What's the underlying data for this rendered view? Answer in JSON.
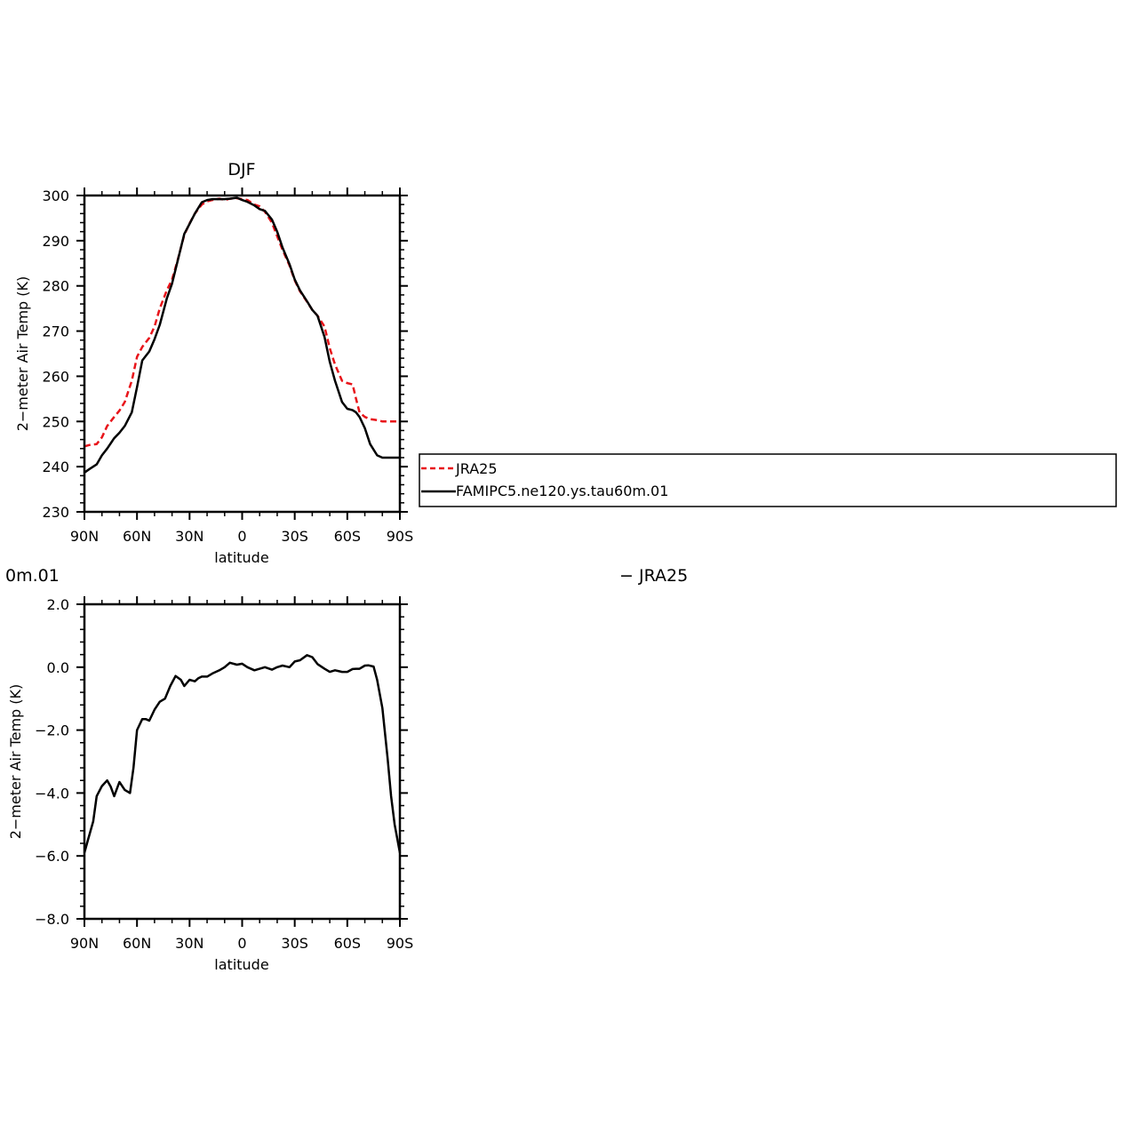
{
  "chart_data": [
    {
      "type": "line",
      "title": "DJF",
      "xlabel": "latitude",
      "ylabel": "2−meter Air Temp (K)",
      "xlim": [
        90,
        -90
      ],
      "ylim": [
        230,
        300
      ],
      "x_ticks": [
        {
          "value": 90,
          "label": "90N"
        },
        {
          "value": 60,
          "label": "60N"
        },
        {
          "value": 30,
          "label": "30N"
        },
        {
          "value": 0,
          "label": "0"
        },
        {
          "value": -30,
          "label": "30S"
        },
        {
          "value": -60,
          "label": "60S"
        },
        {
          "value": -90,
          "label": "90S"
        }
      ],
      "y_ticks": [
        {
          "value": 300,
          "label": "300"
        },
        {
          "value": 290,
          "label": "290"
        },
        {
          "value": 280,
          "label": "280"
        },
        {
          "value": 270,
          "label": "270"
        },
        {
          "value": 260,
          "label": "260"
        },
        {
          "value": 250,
          "label": "250"
        },
        {
          "value": 240,
          "label": "240"
        },
        {
          "value": 230,
          "label": "230"
        }
      ],
      "legend": {
        "placement": "right",
        "entries": [
          "JRA25",
          "FAMIPC5.ne120.ys.tau60m.01"
        ]
      },
      "series": [
        {
          "name": "JRA25",
          "color": "#e8141a",
          "dash": "dashed",
          "x": [
            90,
            87,
            83,
            80,
            77,
            73,
            70,
            67,
            63,
            60,
            57,
            53,
            50,
            47,
            43,
            40,
            37,
            33,
            30,
            27,
            23,
            20,
            17,
            13,
            10,
            7,
            3,
            0,
            -3,
            -7,
            -10,
            -13,
            -17,
            -20,
            -23,
            -27,
            -30,
            -33,
            -37,
            -40,
            -43,
            -47,
            -50,
            -53,
            -57,
            -60,
            -63,
            -65,
            -67,
            -70,
            -73,
            -77,
            -80,
            -83,
            -85,
            -87,
            -90
          ],
          "values": [
            244.5,
            244.8,
            245.0,
            246.5,
            249.0,
            251.0,
            252.4,
            254.3,
            259.0,
            264.3,
            266.5,
            268.5,
            271.0,
            275.0,
            279.0,
            281.4,
            285.4,
            291.3,
            293.8,
            296.0,
            298.0,
            298.7,
            299.0,
            299.3,
            299.0,
            299.3,
            299.4,
            299.2,
            299.0,
            298.0,
            297.6,
            296.4,
            294.0,
            291.0,
            288.0,
            284.5,
            281.2,
            278.8,
            276.5,
            274.7,
            273.4,
            271.0,
            266.2,
            262.6,
            259.0,
            258.5,
            258.2,
            255.0,
            252.0,
            251.0,
            250.5,
            250.3,
            250.0,
            250.0,
            250.0,
            250.0,
            250.0
          ]
        },
        {
          "name": "FAMIPC5.ne120.ys.tau60m.01",
          "color": "#000000",
          "dash": "solid",
          "x": [
            90,
            87,
            83,
            80,
            77,
            73,
            70,
            67,
            63,
            60,
            57,
            53,
            50,
            47,
            43,
            40,
            37,
            33,
            30,
            27,
            23,
            20,
            17,
            13,
            10,
            7,
            3,
            0,
            -3,
            -7,
            -10,
            -13,
            -17,
            -20,
            -23,
            -27,
            -30,
            -33,
            -37,
            -40,
            -43,
            -47,
            -50,
            -53,
            -57,
            -60,
            -63,
            -65,
            -67,
            -70,
            -73,
            -77,
            -80,
            -83,
            -85,
            -87,
            -90
          ],
          "values": [
            238.7,
            239.5,
            240.5,
            242.5,
            244.0,
            246.3,
            247.5,
            249.0,
            252.0,
            257.6,
            263.5,
            265.5,
            268.2,
            271.4,
            277.2,
            280.5,
            285.2,
            291.5,
            293.7,
            296.0,
            298.5,
            299.0,
            299.2,
            299.2,
            299.2,
            299.3,
            299.5,
            299.0,
            298.6,
            297.8,
            297.0,
            296.6,
            294.7,
            292.0,
            288.5,
            284.8,
            281.4,
            279.0,
            276.6,
            274.7,
            273.4,
            268.7,
            263.2,
            259.0,
            254.3,
            252.8,
            252.5,
            252.0,
            251.0,
            248.5,
            245.0,
            242.5,
            242.0,
            242.0,
            242.0,
            242.0,
            242.0
          ]
        }
      ]
    },
    {
      "type": "line",
      "title_left": "0m.01",
      "title_right": "− JRA25",
      "xlabel": "latitude",
      "ylabel": "2−meter Air Temp (K)",
      "xlim": [
        90,
        -90
      ],
      "ylim": [
        -8,
        2
      ],
      "x_ticks": [
        {
          "value": 90,
          "label": "90N"
        },
        {
          "value": 60,
          "label": "60N"
        },
        {
          "value": 30,
          "label": "30N"
        },
        {
          "value": 0,
          "label": "0"
        },
        {
          "value": -30,
          "label": "30S"
        },
        {
          "value": -60,
          "label": "60S"
        },
        {
          "value": -90,
          "label": "90S"
        }
      ],
      "y_ticks": [
        {
          "value": 2,
          "label": "2.0"
        },
        {
          "value": 0,
          "label": "0.0"
        },
        {
          "value": -2,
          "label": "−2.0"
        },
        {
          "value": -4,
          "label": "−4.0"
        },
        {
          "value": -6,
          "label": "−6.0"
        },
        {
          "value": -8,
          "label": "−8.0"
        }
      ],
      "series": [
        {
          "color": "#000000",
          "dash": "solid",
          "x": [
            90,
            88,
            85,
            83,
            80,
            77,
            75,
            73,
            70,
            67,
            64,
            62,
            60,
            57,
            55,
            53,
            50,
            47,
            44,
            41,
            38,
            35,
            33,
            30,
            27,
            25,
            23,
            20,
            17,
            13,
            10,
            7,
            3,
            0,
            -3,
            -7,
            -10,
            -13,
            -17,
            -20,
            -23,
            -27,
            -30,
            -33,
            -37,
            -40,
            -43,
            -47,
            -50,
            -53,
            -57,
            -60,
            -63,
            -65,
            -67,
            -70,
            -72,
            -75,
            -77,
            -80,
            -83,
            -85,
            -87,
            -90
          ],
          "values": [
            -5.9,
            -5.5,
            -4.9,
            -4.1,
            -3.78,
            -3.6,
            -3.8,
            -4.1,
            -3.65,
            -3.9,
            -4.0,
            -3.2,
            -2.0,
            -1.65,
            -1.65,
            -1.7,
            -1.35,
            -1.1,
            -1.0,
            -0.6,
            -0.28,
            -0.4,
            -0.6,
            -0.4,
            -0.45,
            -0.35,
            -0.3,
            -0.3,
            -0.2,
            -0.1,
            0.0,
            0.14,
            0.08,
            0.11,
            0.0,
            -0.1,
            -0.05,
            0.0,
            -0.08,
            0.0,
            0.05,
            0.0,
            0.18,
            0.22,
            0.38,
            0.32,
            0.1,
            -0.05,
            -0.15,
            -0.1,
            -0.15,
            -0.15,
            -0.06,
            -0.05,
            -0.05,
            0.05,
            0.06,
            0.02,
            -0.4,
            -1.3,
            -2.9,
            -4.1,
            -5.0,
            -5.9
          ]
        }
      ]
    }
  ]
}
